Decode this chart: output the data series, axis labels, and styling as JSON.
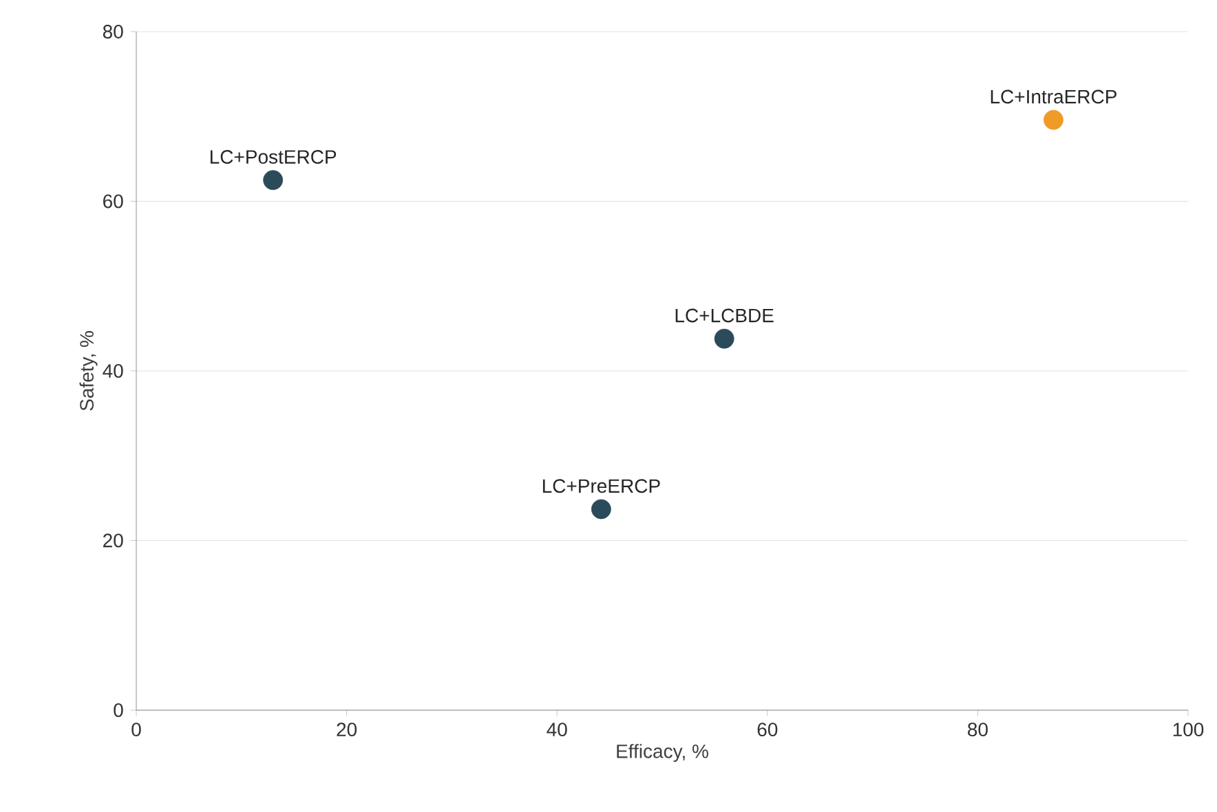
{
  "chart_data": {
    "type": "scatter",
    "xlabel": "Efficacy, %",
    "ylabel": "Safety, %",
    "xlim": [
      0,
      100
    ],
    "xticks": [
      0,
      20,
      40,
      60,
      80,
      100
    ],
    "ylim": [
      0,
      80
    ],
    "yticks": [
      0,
      20,
      40,
      60,
      80
    ],
    "grid": "y",
    "marker": "circle",
    "series": [
      {
        "name": "LC+PostERCP",
        "color": "#2b4a5a",
        "x": [
          13
        ],
        "values": [
          62.5
        ]
      },
      {
        "name": "LC+IntraERCP",
        "color": "#f09a28",
        "x": [
          87.2
        ],
        "values": [
          69.6
        ]
      },
      {
        "name": "LC+LCBDE",
        "color": "#2b4a5a",
        "x": [
          55.9
        ],
        "values": [
          43.8
        ]
      },
      {
        "name": "LC+PreERCP",
        "color": "#2b4a5a",
        "x": [
          44.2
        ],
        "values": [
          23.7
        ]
      }
    ]
  }
}
